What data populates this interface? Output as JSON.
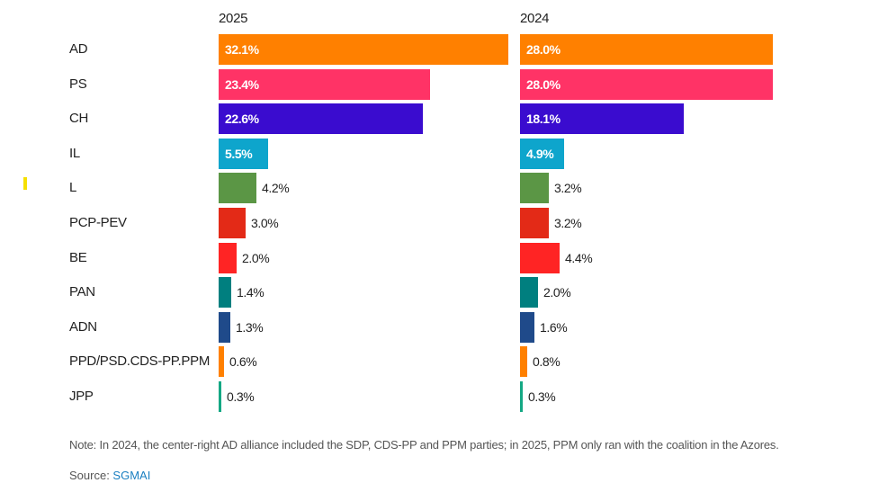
{
  "chart_data": {
    "type": "bar",
    "orientation": "horizontal",
    "categories": [
      "AD",
      "PS",
      "CH",
      "IL",
      "L",
      "PCP-PEV",
      "BE",
      "PAN",
      "ADN",
      "PPD/PSD.CDS-PP.PPM",
      "JPP"
    ],
    "series": [
      {
        "name": "2025",
        "values": [
          32.1,
          23.4,
          22.6,
          5.5,
          4.2,
          3.0,
          2.0,
          1.4,
          1.3,
          0.6,
          0.3
        ],
        "labels": [
          "32.1%",
          "23.4%",
          "22.6%",
          "5.5%",
          "4.2%",
          "3.0%",
          "2.0%",
          "1.4%",
          "1.3%",
          "0.6%",
          "0.3%"
        ]
      },
      {
        "name": "2024",
        "values": [
          28.0,
          28.0,
          18.1,
          4.9,
          3.2,
          3.2,
          4.4,
          2.0,
          1.6,
          0.8,
          0.3
        ],
        "labels": [
          "28.0%",
          "28.0%",
          "18.1%",
          "4.9%",
          "3.2%",
          "3.2%",
          "4.4%",
          "2.0%",
          "1.6%",
          "0.8%",
          "0.3%"
        ]
      }
    ],
    "colors": [
      "#ff8000",
      "#ff3366",
      "#3a0ccf",
      "#0ea5cc",
      "#5b9645",
      "#e32a17",
      "#ff2424",
      "#007f7f",
      "#1f4a8a",
      "#ff8000",
      "#14a884"
    ],
    "unit": "%",
    "title": "",
    "xlabel": "",
    "ylabel": "",
    "grid": false,
    "legend": "none"
  },
  "note": "Note: In 2024, the center-right AD alliance included the SDP, CDS-PP and PPM parties; in 2025, PPM only ran with the coalition in the Azores.",
  "source": {
    "prefix": "Source: ",
    "link_text": "SGMAI"
  }
}
